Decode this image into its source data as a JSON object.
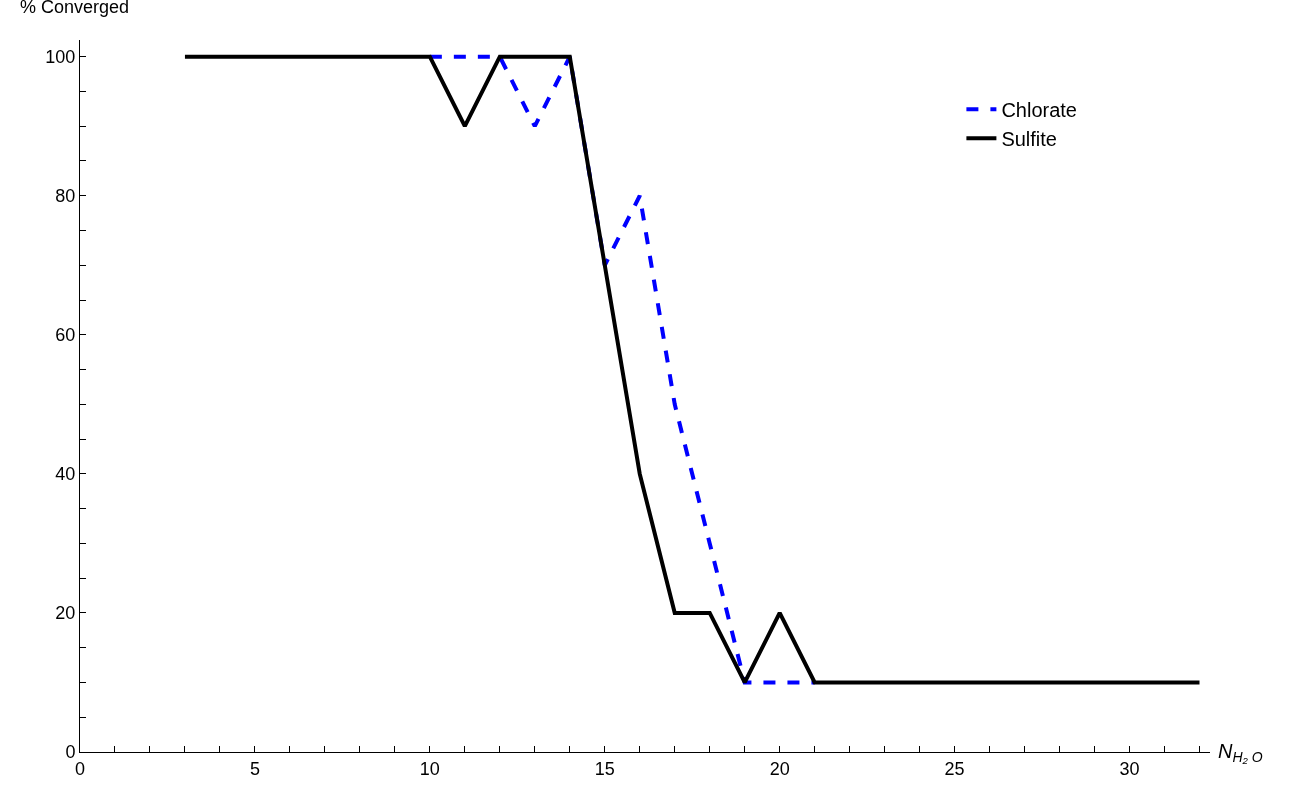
{
  "chart_data": {
    "type": "line",
    "xlabel": "N$_{H₂ O}$",
    "ylabel": "% Converged",
    "x": [
      3,
      4,
      5,
      6,
      7,
      8,
      9,
      10,
      11,
      12,
      13,
      14,
      15,
      16,
      17,
      18,
      19,
      20,
      21,
      22,
      23,
      24,
      25,
      26,
      27,
      28,
      29,
      30,
      31,
      32
    ],
    "series": [
      {
        "name": "Chlorate",
        "color": "#0000ff",
        "line_style": "dashed",
        "values": [
          null,
          null,
          null,
          null,
          null,
          null,
          null,
          100,
          100,
          100,
          90,
          100,
          70,
          80,
          50,
          30,
          10,
          10,
          10,
          null,
          null,
          null,
          null,
          null,
          null,
          null,
          null,
          null,
          null,
          null
        ]
      },
      {
        "name": "Sulfite",
        "color": "#000000",
        "line_style": "solid",
        "values": [
          100,
          100,
          100,
          100,
          100,
          100,
          100,
          100,
          90,
          100,
          100,
          100,
          70,
          40,
          20,
          20,
          10,
          20,
          10,
          10,
          10,
          10,
          10,
          10,
          10,
          10,
          10,
          10,
          10,
          10
        ]
      }
    ],
    "xlim": [
      0,
      32.3
    ],
    "ylim": [
      0,
      102.4
    ],
    "xticks": [
      0,
      {
        "value": 1,
        "label": null
      },
      {
        "value": 2,
        "label": null
      },
      {
        "value": 3,
        "label": null
      },
      {
        "value": 4,
        "label": null
      },
      5,
      {
        "value": 6,
        "label": null
      },
      {
        "value": 7,
        "label": null
      },
      {
        "value": 8,
        "label": null
      },
      {
        "value": 9,
        "label": null
      },
      10,
      {
        "value": 11,
        "label": null
      },
      {
        "value": 12,
        "label": null
      },
      {
        "value": 13,
        "label": null
      },
      {
        "value": 14,
        "label": null
      },
      15,
      {
        "value": 16,
        "label": null
      },
      {
        "value": 17,
        "label": null
      },
      {
        "value": 18,
        "label": null
      },
      {
        "value": 19,
        "label": null
      },
      20,
      {
        "value": 21,
        "label": null
      },
      {
        "value": 22,
        "label": null
      },
      {
        "value": 23,
        "label": null
      },
      {
        "value": 24,
        "label": null
      },
      25,
      {
        "value": 26,
        "label": null
      },
      {
        "value": 27,
        "label": null
      },
      {
        "value": 28,
        "label": null
      },
      {
        "value": 29,
        "label": null
      },
      30,
      {
        "value": 31,
        "label": null
      },
      {
        "value": 32,
        "label": null
      }
    ],
    "yticks": [
      0,
      {
        "value": 5,
        "label": null
      },
      {
        "value": 10,
        "label": null
      },
      {
        "value": 15,
        "label": null
      },
      20,
      {
        "value": 25,
        "label": null
      },
      {
        "value": 30,
        "label": null
      },
      {
        "value": 35,
        "label": null
      },
      40,
      {
        "value": 45,
        "label": null
      },
      {
        "value": 50,
        "label": null
      },
      {
        "value": 55,
        "label": null
      },
      60,
      {
        "value": 65,
        "label": null
      },
      {
        "value": 70,
        "label": null
      },
      {
        "value": 75,
        "label": null
      },
      80,
      {
        "value": 85,
        "label": null
      },
      {
        "value": 90,
        "label": null
      },
      {
        "value": 95,
        "label": null
      },
      100
    ],
    "legend": "top right",
    "marker": "none"
  }
}
